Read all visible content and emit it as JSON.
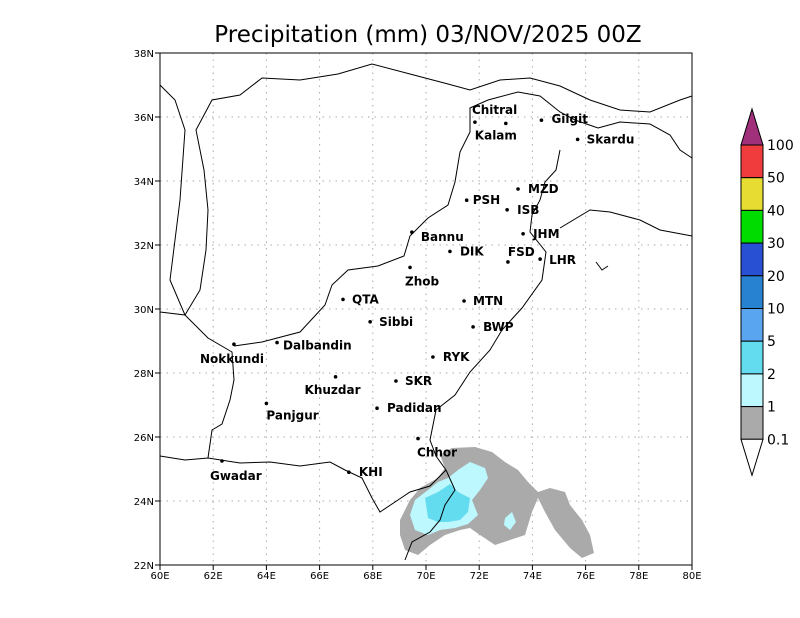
{
  "title": "Precipitation (mm) 03/NOV/2025 00Z",
  "map": {
    "lon_range": [
      60,
      80
    ],
    "lat_range": [
      22,
      38
    ],
    "lon_ticks": [
      "60E",
      "62E",
      "64E",
      "66E",
      "68E",
      "70E",
      "72E",
      "74E",
      "76E",
      "78E",
      "80E"
    ],
    "lat_ticks": [
      "22N",
      "24N",
      "26N",
      "28N",
      "30N",
      "32N",
      "34N",
      "36N",
      "38N"
    ],
    "grid": true,
    "cities": [
      {
        "name": "Chitral",
        "lon": 71.84,
        "lat": 35.84
      },
      {
        "name": "Kalam",
        "lon": 73.0,
        "lat": 35.8
      },
      {
        "name": "Gilgit",
        "lon": 74.34,
        "lat": 35.9
      },
      {
        "name": "Skardu",
        "lon": 75.7,
        "lat": 35.3
      },
      {
        "name": "MZD",
        "lon": 73.46,
        "lat": 33.75
      },
      {
        "name": "PSH",
        "lon": 71.53,
        "lat": 33.4
      },
      {
        "name": "ISB",
        "lon": 73.05,
        "lat": 33.1
      },
      {
        "name": "JHM",
        "lon": 73.65,
        "lat": 32.35
      },
      {
        "name": "Bannu",
        "lon": 69.47,
        "lat": 32.4
      },
      {
        "name": "DIK",
        "lon": 70.9,
        "lat": 31.8
      },
      {
        "name": "FSD",
        "lon": 73.08,
        "lat": 31.47
      },
      {
        "name": "LHR",
        "lon": 74.29,
        "lat": 31.56
      },
      {
        "name": "Zhob",
        "lon": 69.4,
        "lat": 31.3
      },
      {
        "name": "QTA",
        "lon": 66.88,
        "lat": 30.3
      },
      {
        "name": "MTN",
        "lon": 71.43,
        "lat": 30.25
      },
      {
        "name": "Sibbi",
        "lon": 67.9,
        "lat": 29.6
      },
      {
        "name": "BWP",
        "lon": 71.77,
        "lat": 29.44
      },
      {
        "name": "Nokkundi",
        "lon": 62.78,
        "lat": 28.9
      },
      {
        "name": "Dalbandin",
        "lon": 64.4,
        "lat": 28.95
      },
      {
        "name": "RYK",
        "lon": 70.26,
        "lat": 28.5
      },
      {
        "name": "Khuzdar",
        "lon": 66.6,
        "lat": 27.88
      },
      {
        "name": "SKR",
        "lon": 68.87,
        "lat": 27.75
      },
      {
        "name": "Panjgur",
        "lon": 64.0,
        "lat": 27.05
      },
      {
        "name": "Padidan",
        "lon": 68.16,
        "lat": 26.9
      },
      {
        "name": "Chhor",
        "lon": 69.7,
        "lat": 25.95
      },
      {
        "name": "KHI",
        "lon": 67.1,
        "lat": 24.9
      },
      {
        "name": "Gwadar",
        "lon": 62.33,
        "lat": 25.25
      }
    ]
  },
  "colorbar": {
    "labels": [
      "100",
      "50",
      "40",
      "30",
      "20",
      "10",
      "5",
      "2",
      "1",
      "0.1"
    ],
    "colors": [
      "#f03c3c",
      "#e6dc32",
      "#00dc00",
      "#2850d2",
      "#2882d2",
      "#5aa5f0",
      "#64dcf0",
      "#bef8ff",
      "#aaaaaa"
    ],
    "over_color": "#a0307a",
    "under_color": "#ffffff"
  }
}
